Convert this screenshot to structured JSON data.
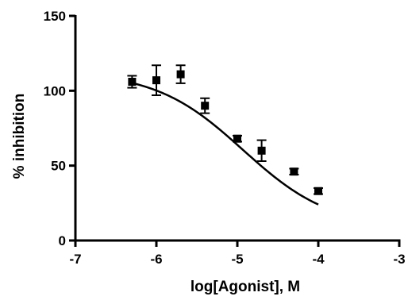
{
  "chart_data": {
    "type": "scatter",
    "title": "",
    "xlabel": "log[Agonist], M",
    "ylabel": "% inhibition",
    "xlim": [
      -7,
      -3
    ],
    "ylim": [
      0,
      150
    ],
    "x_ticks": [
      "-7",
      "-6",
      "-5",
      "-4",
      "-3"
    ],
    "y_ticks": [
      "0",
      "50",
      "100",
      "150"
    ],
    "grid": false,
    "legend": "none",
    "series": [
      {
        "marker": "square",
        "color": "#000000",
        "points": [
          {
            "x": -6.3,
            "y": 106,
            "err": 4
          },
          {
            "x": -6.0,
            "y": 107,
            "err": 10
          },
          {
            "x": -5.7,
            "y": 111,
            "err": 6
          },
          {
            "x": -5.4,
            "y": 90,
            "err": 5
          },
          {
            "x": -5.0,
            "y": 68,
            "err": 2
          },
          {
            "x": -4.7,
            "y": 60,
            "err": 7
          },
          {
            "x": -4.3,
            "y": 46,
            "err": 2
          },
          {
            "x": -4.0,
            "y": 33,
            "err": 2
          }
        ]
      }
    ],
    "fit_curve": {
      "model": "sigmoidal dose-response",
      "top": 113,
      "bottom": 8,
      "log_ic50": -4.93,
      "hill_slope": -0.8,
      "x_range": [
        -6.3,
        -4.0
      ]
    }
  }
}
